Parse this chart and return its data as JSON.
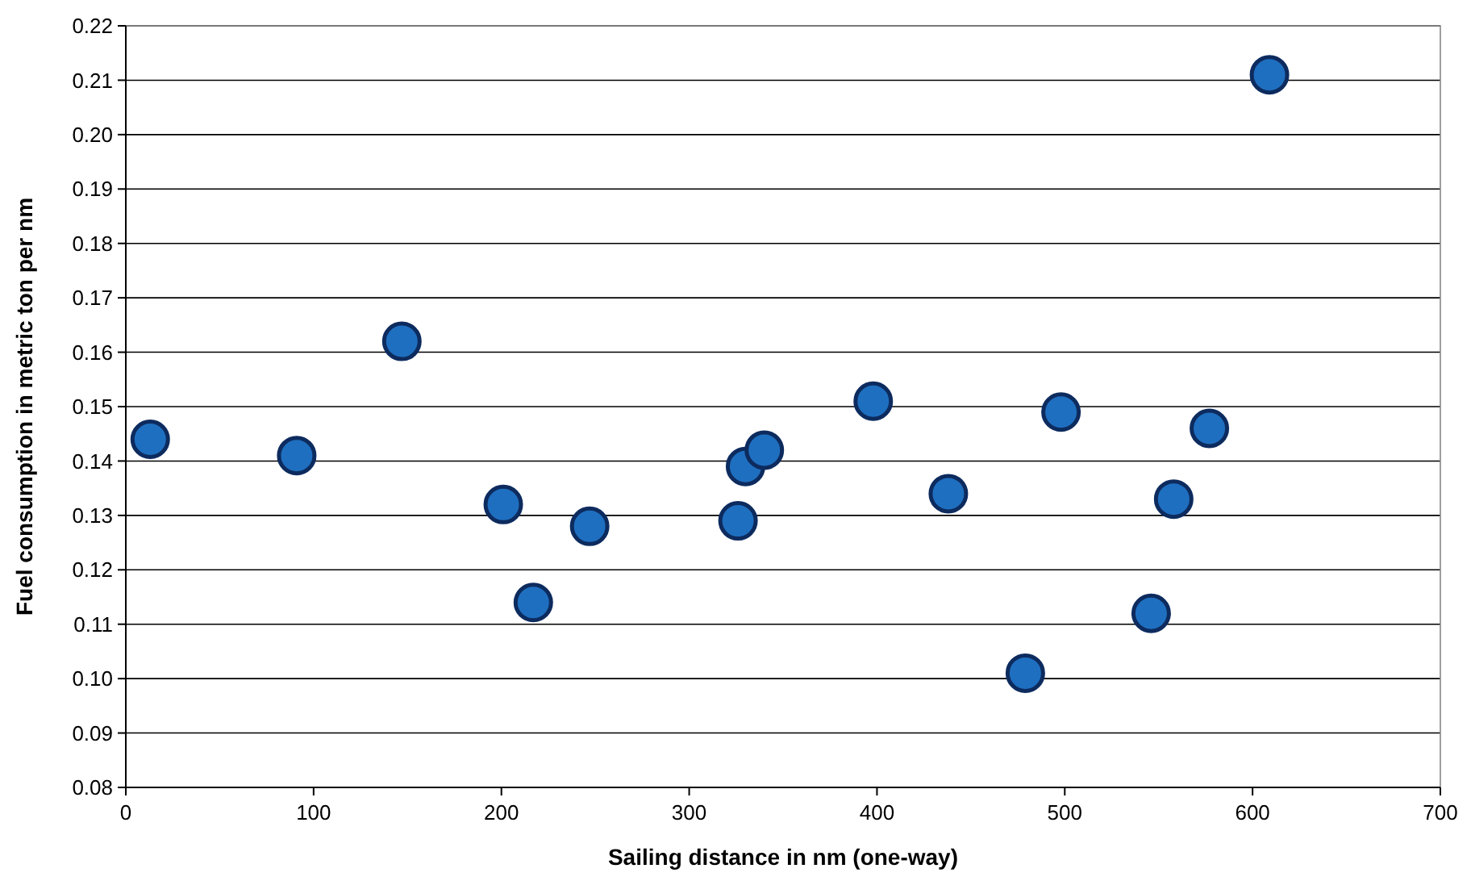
{
  "chart_data": {
    "type": "scatter",
    "xlabel": "Sailing distance in nm (one-way)",
    "ylabel": "Fuel consumption in metric ton per nm",
    "x": [
      13,
      91,
      147,
      201,
      217,
      247,
      326,
      330,
      340,
      398,
      438,
      479,
      498,
      546,
      558,
      577,
      609
    ],
    "values": [
      0.144,
      0.141,
      0.162,
      0.132,
      0.114,
      0.128,
      0.129,
      0.139,
      0.142,
      0.151,
      0.134,
      0.101,
      0.149,
      0.112,
      0.133,
      0.146,
      0.211
    ],
    "color": "#1f6fc0",
    "marker": "circle",
    "grid": "y",
    "xlim": [
      0,
      700
    ],
    "xticks": [
      0,
      100,
      200,
      300,
      400,
      500,
      600,
      700
    ],
    "ylim": [
      0.08,
      0.22
    ],
    "yticks": [
      {
        "value": 0.08,
        "label": "0.08"
      },
      {
        "value": 0.09,
        "label": "0.09"
      },
      {
        "value": 0.1,
        "label": "0.10"
      },
      {
        "value": 0.11,
        "label": "0.11"
      },
      {
        "value": 0.12,
        "label": "0.12"
      },
      {
        "value": 0.13,
        "label": "0.13"
      },
      {
        "value": 0.14,
        "label": "0.14"
      },
      {
        "value": 0.15,
        "label": "0.15"
      },
      {
        "value": 0.16,
        "label": "0.16"
      },
      {
        "value": 0.17,
        "label": "0.17"
      },
      {
        "value": 0.18,
        "label": "0.18"
      },
      {
        "value": 0.19,
        "label": "0.19"
      },
      {
        "value": 0.2,
        "label": "0.20"
      },
      {
        "value": 0.21,
        "label": "0.21"
      },
      {
        "value": 0.22,
        "label": "0.22"
      }
    ]
  }
}
